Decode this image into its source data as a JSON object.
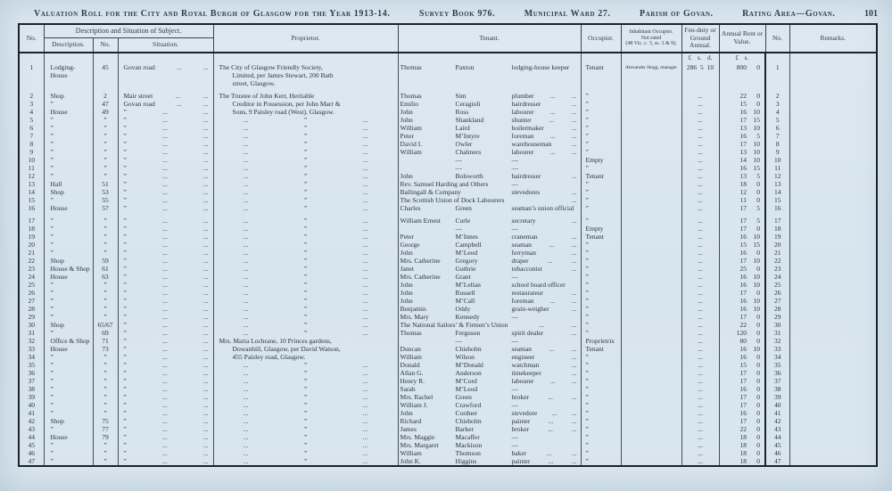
{
  "masthead": {
    "title": "Valuation Roll for the City and Royal Burgh of Glasgow for the Year 1913-14.",
    "survey": "Survey Book 976.",
    "ward": "Municipal Ward 27.",
    "parish": "Parish of Govan.",
    "rating": "Rating Area—Govan.",
    "page_no": "101"
  },
  "table": {
    "headers": {
      "no": "No.",
      "desc_group": "Description and Situation of Subject.",
      "description": "Description.",
      "street_no": "No.",
      "situation": "Situation.",
      "proprietor": "Proprietor.",
      "tenant": "Tenant.",
      "occupier": "Occupier.",
      "inhabitant": "Inhabitant Occupier.\nNot rated\n(48 Vic. c. 3, ss. 3 & 9).",
      "feu": "Feu-duty or Ground Annual.",
      "rent": "Annual Rent or Value.",
      "no2": "No.",
      "remarks": "Remarks."
    },
    "currency_feu": "£ s. d.",
    "currency_rent": "£ s."
  },
  "glyphs": {
    "dots": "...",
    "ditto": "”",
    "dash": "—"
  },
  "rows": [
    {
      "n": "1",
      "d": "Lodging-\nHouse",
      "sn": "45",
      "st": "Govan road",
      "pl": [
        "The City of Glasgow Friendly Society,",
        "Limited, per James Stewart, 200 Bath",
        "street, Glasgow."
      ],
      "t1": "Thomas",
      "t2": "Paxton",
      "oc": "lodging-house keeper",
      "od": 0,
      "or": "Tenant",
      "ih": "Alexander Hogg, manager",
      "fd": "286 5 10",
      "rl": "800",
      "rs": "0",
      "gap": true
    },
    {
      "n": "2",
      "d": "Shop",
      "sn": "2",
      "st": "Mair street",
      "pl": [
        "The Trustee of John Kerr, Heritable"
      ],
      "t1": "Thomas",
      "t2": "Sim",
      "oc": "plumber",
      "od": 2,
      "rl": "22",
      "rs": "0"
    },
    {
      "n": "3",
      "sn": "47",
      "st": "Govan road",
      "pl": [
        "Creditor in Possession, per John Marr &"
      ],
      "pi": true,
      "t1": "Emilio",
      "t2": "Ceragioli",
      "oc": "hairdresser",
      "od": 1,
      "rl": "15",
      "rs": "0"
    },
    {
      "n": "4",
      "d": "House",
      "sn": "49",
      "pl": [
        "Sons, 9 Paisley road (West), Glasgow."
      ],
      "pi": true,
      "t1": "John",
      "t2": "Ross",
      "oc": "labourer",
      "od": 2,
      "rl": "16",
      "rs": "10"
    },
    {
      "n": "5",
      "t1": "John",
      "t2": "Shankland",
      "oc": "shunter",
      "od": 2,
      "rl": "17",
      "rs": "15"
    },
    {
      "n": "6",
      "t1": "William",
      "t2": "Laird",
      "oc": "boilermaker",
      "od": 1,
      "rl": "13",
      "rs": "10"
    },
    {
      "n": "7",
      "t1": "Peter",
      "t2": "M’Intyre",
      "oc": "foreman",
      "od": 2,
      "rl": "16",
      "rs": "5"
    },
    {
      "n": "8",
      "t1": "David I.",
      "t2": "Owler",
      "oc": "warehouseman",
      "od": 1,
      "rl": "17",
      "rs": "10"
    },
    {
      "n": "9",
      "t1": "William",
      "t2": "Chalmers",
      "oc": "labourer",
      "od": 2,
      "rl": "13",
      "rs": "10"
    },
    {
      "n": "10",
      "t1": "",
      "t2": "—",
      "oc": "—",
      "od": 0,
      "or": "Empty",
      "rl": "14",
      "rs": "10"
    },
    {
      "n": "11",
      "t1": "",
      "t2": "—",
      "oc": "—",
      "od": 0,
      "rl": "16",
      "rs": "15"
    },
    {
      "n": "12",
      "t1": "John",
      "t2": "Bolsworth",
      "oc": "hairdresser",
      "od": 1,
      "or": "Tenant",
      "rl": "13",
      "rs": "5"
    },
    {
      "n": "13",
      "d": "Hall",
      "sn": "51",
      "tw": "Rev. Samuel Harding and Others",
      "oc": "—",
      "od": 0,
      "rl": "18",
      "rs": "0"
    },
    {
      "n": "14",
      "d": "Shop",
      "sn": "53",
      "tw": "Ballingall & Company",
      "oc": "stevedores",
      "od": 1,
      "rl": "12",
      "rs": "0"
    },
    {
      "n": "15",
      "sn": "55",
      "tw": "The Scottish Union of Dock Labourers",
      "oc": "",
      "od": 1,
      "rl": "11",
      "rs": "0"
    },
    {
      "n": "16",
      "d": "House",
      "sn": "57",
      "t1": "Charles",
      "t2": "Green",
      "oc": "seaman’s union official",
      "od": 0,
      "rl": "17",
      "rs": "5",
      "gap": true
    },
    {
      "n": "17",
      "t1": "William Ernest",
      "t2": "Curle",
      "oc": "secretary",
      "od": 1,
      "rl": "17",
      "rs": "5"
    },
    {
      "n": "18",
      "t1": "",
      "t2": "—",
      "oc": "—",
      "od": 0,
      "or": "Empty",
      "rl": "17",
      "rs": "0"
    },
    {
      "n": "19",
      "t1": "Peter",
      "t2": "M’Innes",
      "oc": "craneman",
      "od": 1,
      "or": "Tenant",
      "rl": "16",
      "rs": "10"
    },
    {
      "n": "20",
      "t1": "George",
      "t2": "Campbell",
      "oc": "seaman",
      "od": 2,
      "rl": "15",
      "rs": "15"
    },
    {
      "n": "21",
      "t1": "John",
      "t2": "M’Leod",
      "oc": "ferryman",
      "od": 1,
      "rl": "16",
      "rs": "0"
    },
    {
      "n": "22",
      "d": "Shop",
      "sn": "59",
      "t1": "Mrs. Catherine",
      "t2": "Gregory",
      "oc": "draper",
      "od": 2,
      "rl": "17",
      "rs": "10"
    },
    {
      "n": "23",
      "d": "House & Shop",
      "sn": "61",
      "t1": "Janet",
      "t2": "Guthrie",
      "oc": "tobacconist",
      "od": 1,
      "rl": "25",
      "rs": "0"
    },
    {
      "n": "24",
      "d": "House",
      "sn": "63",
      "t1": "Mrs. Catherine",
      "t2": "Grant",
      "oc": "—",
      "od": 0,
      "rl": "16",
      "rs": "10"
    },
    {
      "n": "25",
      "t1": "John",
      "t2": "M’Lellan",
      "oc": "school board officer",
      "od": 0,
      "rl": "16",
      "rs": "10"
    },
    {
      "n": "26",
      "t1": "John",
      "t2": "Russell",
      "oc": "restaurateur",
      "od": 1,
      "rl": "17",
      "rs": "0"
    },
    {
      "n": "27",
      "t1": "John",
      "t2": "M’Call",
      "oc": "foreman",
      "od": 2,
      "rl": "16",
      "rs": "10"
    },
    {
      "n": "28",
      "t1": "Benjamin",
      "t2": "Oddy",
      "oc": "grain-weigher",
      "od": 1,
      "rl": "16",
      "rs": "10"
    },
    {
      "n": "29",
      "t1": "Mrs. Mary",
      "t2": "Kennedy",
      "oc": "—",
      "od": 0,
      "rl": "17",
      "rs": "0"
    },
    {
      "n": "30",
      "d": "Shop",
      "sn": "65/67",
      "tw": "The National Sailors’ & Firmen’s Union",
      "oc": "",
      "od": 2,
      "rl": "22",
      "rs": "0"
    },
    {
      "n": "31",
      "sn": "69",
      "t1": "Thomas",
      "t2": "Ferguson",
      "oc": "spirit dealer",
      "od": 1,
      "rl": "120",
      "rs": "0"
    },
    {
      "n": "32",
      "d": "Office & Shop",
      "sn": "71",
      "pl": [
        "Mrs. Maria Lochrane, 10 Princes gardens,"
      ],
      "t1": "",
      "t2": "—",
      "oc": "—",
      "od": 0,
      "or": "Proprietrix",
      "rl": "80",
      "rs": "0"
    },
    {
      "n": "33",
      "d": "House",
      "sn": "73",
      "pl": [
        "Dowanhill, Glasgow, per David Watson,"
      ],
      "pi": true,
      "t1": "Duncan",
      "t2": "Chisholm",
      "oc": "seaman",
      "od": 2,
      "or": "Tenant",
      "rl": "16",
      "rs": "10"
    },
    {
      "n": "34",
      "pl": [
        "455 Paisley road, Glasgow."
      ],
      "pi": true,
      "t1": "William",
      "t2": "Wilson",
      "oc": "engineer",
      "od": 1,
      "rl": "16",
      "rs": "0"
    },
    {
      "n": "35",
      "t1": "Donald",
      "t2": "M’Donald",
      "oc": "watchman",
      "od": 1,
      "rl": "15",
      "rs": "0"
    },
    {
      "n": "36",
      "t1": "Allan G.",
      "t2": "Anderson",
      "oc": "timekeeper",
      "od": 1,
      "rl": "17",
      "rs": "0"
    },
    {
      "n": "37",
      "t1": "Henry R.",
      "t2": "M’Cord",
      "oc": "labourer",
      "od": 2,
      "rl": "17",
      "rs": "0"
    },
    {
      "n": "38",
      "t1": "Sarah",
      "t2": "M’Leod",
      "oc": "—",
      "od": 0,
      "rl": "16",
      "rs": "0"
    },
    {
      "n": "39",
      "t1": "Mrs. Rachel",
      "t2": "Green",
      "oc": "broker",
      "od": 2,
      "rl": "17",
      "rs": "0"
    },
    {
      "n": "40",
      "t1": "William J.",
      "t2": "Crawford",
      "oc": "—",
      "od": 0,
      "rl": "17",
      "rs": "0"
    },
    {
      "n": "41",
      "t1": "John",
      "t2": "Cordner",
      "oc": "stevedore",
      "od": 2,
      "rl": "16",
      "rs": "0"
    },
    {
      "n": "42",
      "d": "Shop",
      "sn": "75",
      "t1": "Richard",
      "t2": "Chisholm",
      "oc": "painter",
      "od": 2,
      "rl": "17",
      "rs": "0"
    },
    {
      "n": "43",
      "sn": "77",
      "t1": "James",
      "t2": "Barker",
      "oc": "broker",
      "od": 2,
      "rl": "22",
      "rs": "0"
    },
    {
      "n": "44",
      "d": "House",
      "sn": "79",
      "t1": "Mrs. Maggie",
      "t2": "Macaffer",
      "oc": "—",
      "od": 0,
      "rl": "18",
      "rs": "0"
    },
    {
      "n": "45",
      "t1": "Mrs. Margaret",
      "t2": "Mackison",
      "oc": "—",
      "od": 0,
      "rl": "18",
      "rs": "0"
    },
    {
      "n": "46",
      "t1": "William",
      "t2": "Thomson",
      "oc": "baker",
      "od": 2,
      "rl": "18",
      "rs": "0"
    },
    {
      "n": "47",
      "t1": "John K.",
      "t2": "Higgins",
      "oc": "painter",
      "od": 2,
      "rl": "18",
      "rs": "0"
    }
  ]
}
